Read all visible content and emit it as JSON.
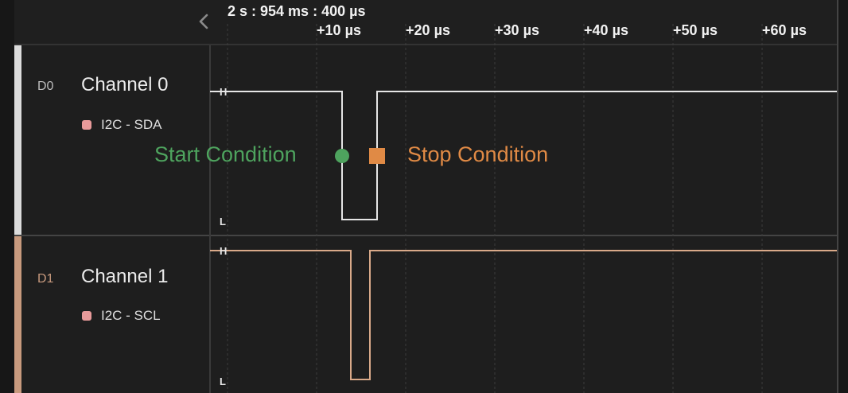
{
  "header": {
    "timestamp": "2 s : 954 ms : 400 µs",
    "ticks": [
      "+10 µs",
      "+20 µs",
      "+30 µs",
      "+40 µs",
      "+50 µs",
      "+60 µs"
    ]
  },
  "channels": [
    {
      "id": "D0",
      "name": "Channel 0",
      "analyzer": "I2C - SDA",
      "high_label": "H",
      "low_label": "L",
      "color": "#dcdcdc"
    },
    {
      "id": "D1",
      "name": "Channel 1",
      "analyzer": "I2C - SCL",
      "high_label": "H",
      "low_label": "L",
      "color": "#c89a7e"
    }
  ],
  "markers": {
    "start_label": "Start Condition",
    "stop_label": "Stop Condition",
    "start_color": "#4ea35e",
    "stop_color": "#e08a45"
  },
  "icons": {
    "collapse": "chevron-left-icon"
  }
}
